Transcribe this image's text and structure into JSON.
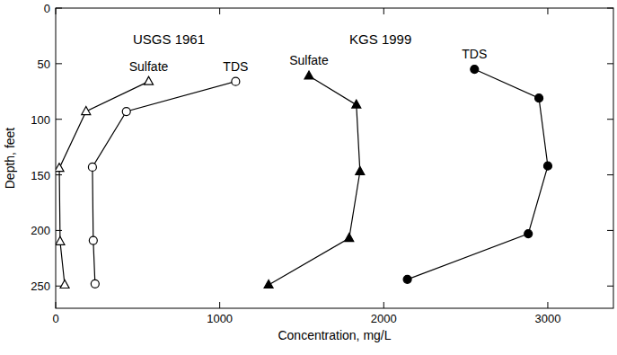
{
  "chart_data": {
    "type": "line",
    "x_label": "Concentration, mg/L",
    "y_label": "Depth, feet",
    "xlim": [
      0,
      3400
    ],
    "xticks": [
      0,
      1000,
      2000,
      3000
    ],
    "ylim": [
      270,
      0
    ],
    "yticks": [
      0,
      50,
      100,
      150,
      200,
      250
    ],
    "grid": false,
    "annotations": [
      {
        "text": "USGS 1961",
        "x": 690,
        "y": 32
      },
      {
        "text": "KGS 1999",
        "x": 1980,
        "y": 32
      }
    ],
    "series": [
      {
        "name": "Sulfate",
        "color": "#000000",
        "marker": "triangle-open",
        "line_style": "solid",
        "x": [
          567,
          185,
          22,
          27,
          55
        ],
        "values": [
          66,
          93,
          144,
          210,
          249
        ]
      },
      {
        "name": "TDS",
        "color": "#000000",
        "marker": "circle-open",
        "line_style": "solid",
        "x": [
          1097,
          431,
          224,
          229,
          240
        ],
        "values": [
          66,
          93,
          143,
          209,
          248
        ]
      },
      {
        "name": "Sulfate",
        "color": "#000000",
        "marker": "triangle",
        "line_style": "solid",
        "x": [
          1544,
          1833,
          1855,
          1789,
          1298
        ],
        "values": [
          61,
          87,
          147,
          207,
          249
        ]
      },
      {
        "name": "TDS",
        "color": "#000000",
        "marker": "circle",
        "line_style": "solid",
        "x": [
          2553,
          2946,
          3000,
          2881,
          2144
        ],
        "values": [
          55,
          81,
          142,
          203,
          244
        ]
      }
    ]
  }
}
